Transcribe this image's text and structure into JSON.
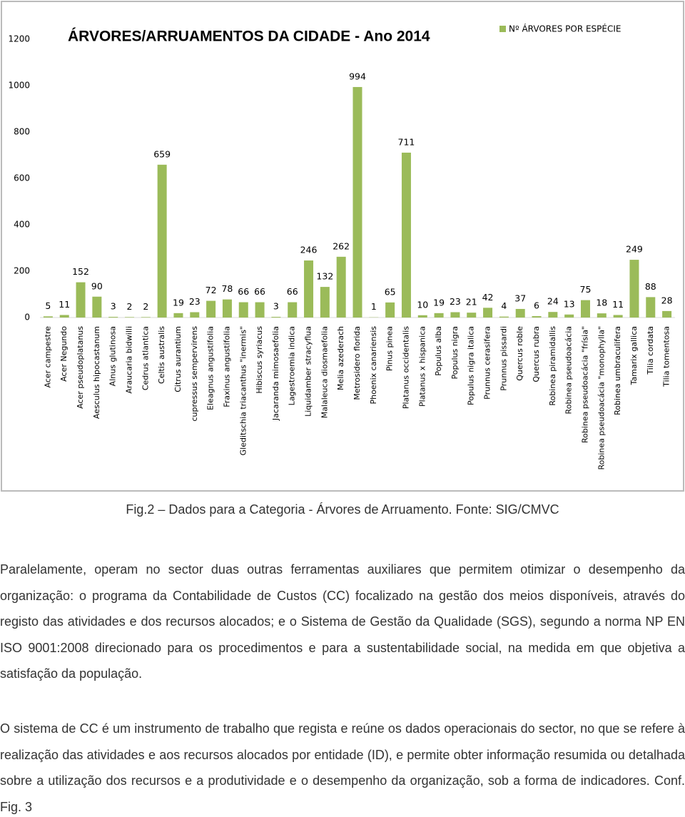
{
  "chart_data": {
    "type": "bar",
    "title": "ÁRVORES/ARRUAMENTOS DA CIDADE - Ano 2014",
    "categories": [
      "Acer campestre",
      "Acer Negundo",
      "Acer pseudoplatanus",
      "Aesculus hipocastanum",
      "Alnus glutinosa",
      "Araucaria bidwilli",
      "Cedrus atlantica",
      "Celtis australis",
      "Citrus aurantium",
      "cupressus sempervirens",
      "Eleagnus angustifolia",
      "Fraxinus angustifolia",
      "Gleditschia triacanthus \"inermis\"",
      "Hibiscus syriacus",
      "Jacaranda mimosaefolia",
      "Lagestroemia indica",
      "Liquidamber stracyflua",
      "Malaleuca diosmaefolia",
      "Melia azederach",
      "Metrosidero florida",
      "Phoenix canariensis",
      "Pinus pinea",
      "Platanus occidentalis",
      "Platanus x hispanica",
      "Populus alba",
      "Populus nigra",
      "Populus nigra italica",
      "Prunnus cerasifera",
      "Prunnus pissardi",
      "Quercus roble",
      "Quercus rubra",
      "Robinea piramidallis",
      "Robinea pseudoacácia",
      "Robinea pseudoacácia \"frísia\"",
      "Robinea pseudoacácia \"monophylla\"",
      "Robinea umbraculifera",
      "Tamarix gallica",
      "Tilia cordata",
      "Tilia tomentosa"
    ],
    "series": [
      {
        "name": "Nº ÁRVORES POR ESPÉCIE",
        "color": "#9bbb59",
        "values": [
          5,
          11,
          152,
          90,
          3,
          2,
          2,
          659,
          19,
          23,
          72,
          78,
          66,
          66,
          3,
          66,
          246,
          132,
          262,
          994,
          1,
          65,
          711,
          10,
          19,
          23,
          21,
          42,
          4,
          37,
          6,
          24,
          13,
          75,
          18,
          11,
          249,
          88,
          28
        ]
      }
    ],
    "ylim": [
      0,
      1200
    ],
    "yticks": [
      0,
      200,
      400,
      600,
      800,
      1000,
      1200
    ],
    "grid": false,
    "legend": "top-right"
  },
  "caption": "Fig.2 – Dados para a Categoria - Árvores de Arruamento. Fonte: SIG/CMVC",
  "paragraphs": [
    "Paralelamente, operam no sector duas outras ferramentas auxiliares que permitem otimizar o desempenho da organização: o programa da Contabilidade de Custos (CC) focalizado na gestão dos meios disponíveis, através do registo das atividades e dos recursos alocados; e o Sistema de Gestão da Qualidade (SGS), segundo a norma NP EN ISO 9001:2008 direcionado para os procedimentos e para a sustentabilidade social, na medida em que objetiva a satisfação da população.",
    "O sistema de CC é um instrumento de trabalho que regista e reúne os dados operacionais do sector, no que se refere à realização das atividades e aos recursos alocados por entidade (ID), e permite obter informação resumida ou detalhada sobre a utilização dos recursos e a produtividade e o desempenho da organização, sob a forma de indicadores. Conf. Fig. 3"
  ]
}
